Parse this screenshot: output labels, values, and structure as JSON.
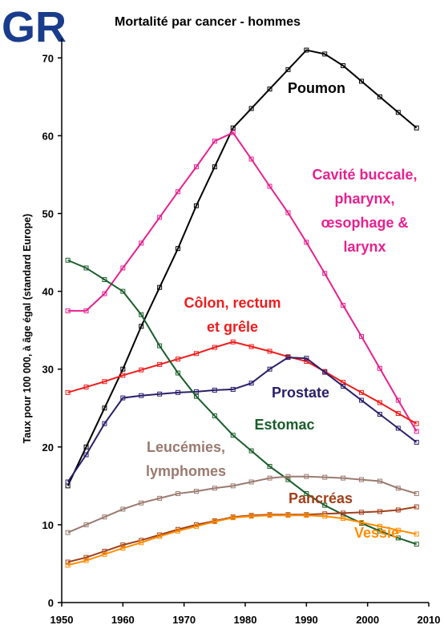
{
  "logo": "GR",
  "chart_data": {
    "type": "line",
    "title": "Mortalité par cancer - hommes",
    "y_label": "Taux pour 100 000, à âge égal (standard Europe)",
    "x": [
      1951,
      1954,
      1957,
      1960,
      1963,
      1966,
      1969,
      1972,
      1975,
      1978,
      1981,
      1984,
      1987,
      1990,
      1993,
      1996,
      1999,
      2002,
      2005,
      2008
    ],
    "xlim": [
      1950,
      2010
    ],
    "xticks": [
      1950,
      1960,
      1970,
      1980,
      1990,
      2000,
      2010
    ],
    "ylim": [
      0,
      72.5
    ],
    "yticks": [
      0,
      10,
      20,
      30,
      40,
      50,
      60,
      70
    ],
    "markers": true,
    "series": [
      {
        "name": [
          "Poumon"
        ],
        "color": "#000000",
        "values": [
          15,
          20,
          25,
          30,
          35.5,
          40.5,
          45.5,
          51,
          56,
          61,
          63.5,
          66,
          68.5,
          71,
          70.5,
          69,
          67,
          65,
          63,
          61
        ]
      },
      {
        "name": [
          "Cavité buccale,",
          "pharynx,",
          "œsophage &",
          "larynx"
        ],
        "color": "#e8208f",
        "values": [
          37.5,
          37.5,
          39.7,
          43,
          46.2,
          49.5,
          52.8,
          56,
          59.3,
          60.4,
          57,
          53.5,
          50.1,
          46.3,
          42.3,
          38.2,
          34.2,
          30.1,
          26,
          22
        ]
      },
      {
        "name": [
          "Côlon, rectum",
          "et grêle"
        ],
        "color": "#ee1c1c",
        "values": [
          27,
          27.7,
          28.4,
          29.2,
          29.9,
          30.6,
          31.3,
          32,
          32.8,
          33.5,
          32.9,
          32.3,
          31.6,
          31,
          29.7,
          28.3,
          27,
          25.7,
          24.3,
          23
        ]
      },
      {
        "name": [
          "Prostate"
        ],
        "color": "#2a1e6a",
        "values": [
          15.5,
          19,
          23,
          26.3,
          26.6,
          26.8,
          27,
          27.1,
          27.3,
          27.4,
          28.2,
          30,
          31.5,
          31.4,
          29.6,
          27.8,
          26,
          24.2,
          22.4,
          20.6
        ]
      },
      {
        "name": [
          "Estomac"
        ],
        "color": "#1a5e2a",
        "values": [
          44,
          43,
          41.5,
          40,
          37,
          33,
          29.5,
          26.5,
          24,
          21.5,
          19.5,
          17.5,
          15.8,
          14,
          12.5,
          11.3,
          10.2,
          9.2,
          8.3,
          7.5
        ]
      },
      {
        "name": [
          "Leucémies,",
          "lymphomes"
        ],
        "color": "#9a7a70",
        "values": [
          9,
          10,
          11,
          12,
          12.8,
          13.4,
          14,
          14.3,
          14.7,
          15,
          15.5,
          16,
          16.2,
          16.2,
          16.1,
          16,
          15.8,
          15.6,
          14.7,
          14
        ]
      },
      {
        "name": [
          "Pancréas"
        ],
        "color": "#a0401a",
        "values": [
          5.2,
          5.8,
          6.6,
          7.4,
          8,
          8.7,
          9.4,
          10,
          10.5,
          11,
          11.2,
          11.3,
          11.3,
          11.3,
          11.4,
          11.5,
          11.6,
          11.7,
          11.9,
          12.3
        ]
      },
      {
        "name": [
          "Vessie"
        ],
        "color": "#ff8c00",
        "values": [
          4.8,
          5.4,
          6.2,
          7,
          7.7,
          8.5,
          9.2,
          9.8,
          10.4,
          10.9,
          11.1,
          11.2,
          11.2,
          11.2,
          11.1,
          10.8,
          10.3,
          9.8,
          9.3,
          8.8
        ]
      }
    ]
  }
}
